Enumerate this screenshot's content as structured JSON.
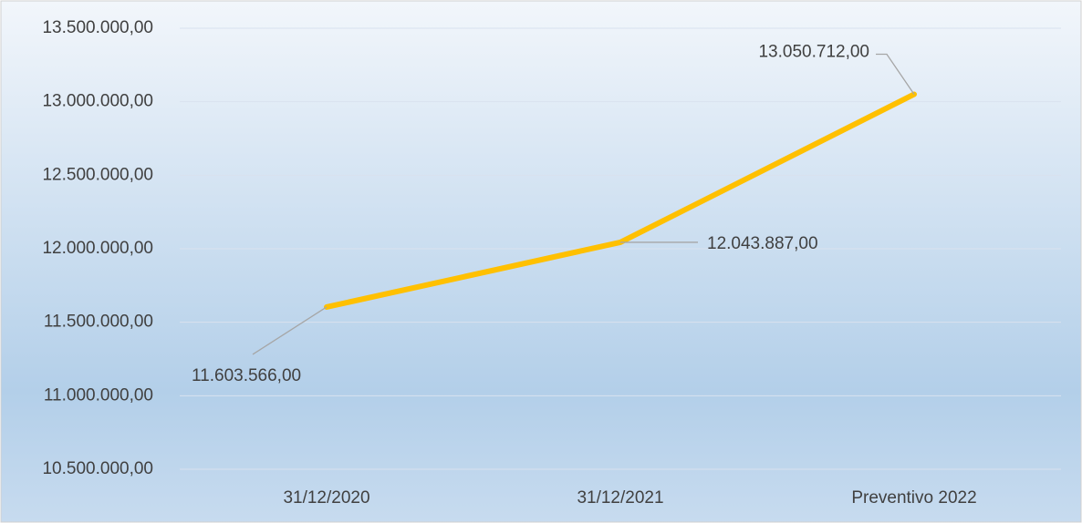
{
  "chart_data": {
    "type": "line",
    "categories": [
      "31/12/2020",
      "31/12/2021",
      "Preventivo 2022"
    ],
    "values": [
      11603566,
      12043887,
      13050712
    ],
    "value_labels": [
      "11.603.566,00",
      "12.043.887,00",
      "13.050.712,00"
    ],
    "color": "#ffc000",
    "ylim": [
      10500000,
      13500000
    ],
    "yticks": [
      {
        "value": 10500000,
        "label": "10.500.000,00"
      },
      {
        "value": 11000000,
        "label": "11.000.000,00"
      },
      {
        "value": 11500000,
        "label": "11.500.000,00"
      },
      {
        "value": 12000000,
        "label": "12.000.000,00"
      },
      {
        "value": 12500000,
        "label": "12.500.000,00"
      },
      {
        "value": 13000000,
        "label": "13.000.000,00"
      },
      {
        "value": 13500000,
        "label": "13.500.000,00"
      }
    ],
    "grid": true
  }
}
